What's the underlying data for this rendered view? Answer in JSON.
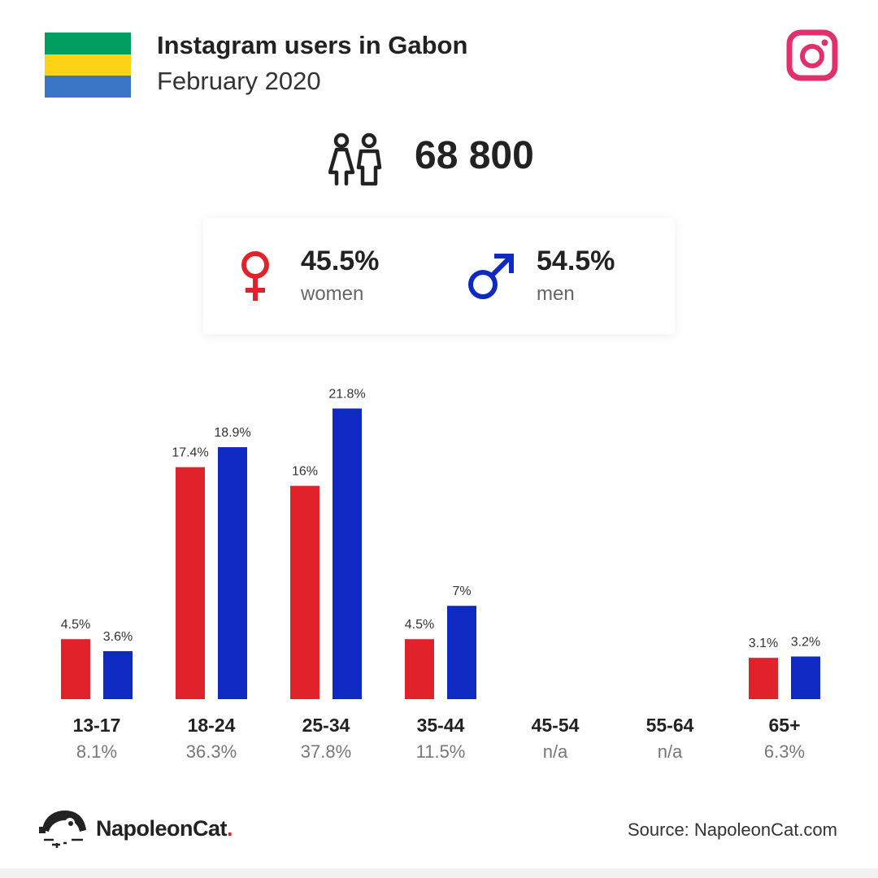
{
  "header": {
    "title": "Instagram users in Gabon",
    "subtitle": "February 2020",
    "flag_colors": [
      "#009e60",
      "#fcd116",
      "#3a75c4"
    ]
  },
  "icons": {
    "platform": "instagram-icon",
    "users": "users-icon",
    "female": "female-symbol-icon",
    "male": "male-symbol-icon",
    "brand": "napoleoncat-logo-icon"
  },
  "colors": {
    "women": "#e0232b",
    "men": "#0f2ac2",
    "instagram": "#e1306c"
  },
  "total_users": "68 800",
  "gender": {
    "women_pct": "45.5%",
    "women_label": "women",
    "men_pct": "54.5%",
    "men_label": "men"
  },
  "chart_data": {
    "type": "bar",
    "categories": [
      "13-17",
      "18-24",
      "25-34",
      "35-44",
      "45-54",
      "55-64",
      "65+"
    ],
    "category_totals": [
      "8.1%",
      "36.3%",
      "37.8%",
      "11.5%",
      "n/a",
      "n/a",
      "6.3%"
    ],
    "series": [
      {
        "values": [
          4.5,
          17.4,
          16,
          4.5,
          null,
          null,
          3.1
        ],
        "labels": [
          "4.5%",
          "17.4%",
          "16%",
          "4.5%",
          "",
          "",
          "3.1%"
        ],
        "color": "#e0232b"
      },
      {
        "values": [
          3.6,
          18.9,
          21.8,
          7,
          null,
          null,
          3.2
        ],
        "labels": [
          "3.6%",
          "18.9%",
          "21.8%",
          "7%",
          "",
          "",
          "3.2%"
        ],
        "color": "#0f2ac2"
      }
    ],
    "ylim": [
      0,
      22
    ],
    "grid": false
  },
  "footer": {
    "brand_name": "NapoleonCat",
    "brand_dot": ".",
    "source": "Source: NapoleonCat.com"
  }
}
